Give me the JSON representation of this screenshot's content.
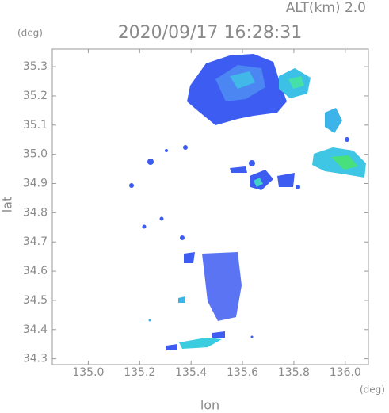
{
  "chart_data": {
    "type": "map",
    "title": "2020/09/17 16:28:31",
    "annotation": "ALT(km) 2.0",
    "x_label": "lon",
    "y_label": "lat",
    "x_unit": "(deg)",
    "y_unit": "(deg)",
    "xlim": [
      134.86,
      136.09
    ],
    "ylim": [
      34.28,
      35.36
    ],
    "xticks": [
      {
        "value": 135.0,
        "label": "135.0"
      },
      135.2,
      135.4,
      135.6,
      135.8,
      {
        "value": 136.0,
        "label": "136.0"
      }
    ],
    "yticks": [
      34.3,
      34.4,
      34.5,
      34.6,
      34.7,
      34.8,
      34.9,
      {
        "value": 35.0,
        "label": "35.0"
      },
      35.1,
      35.2,
      35.3
    ]
  }
}
